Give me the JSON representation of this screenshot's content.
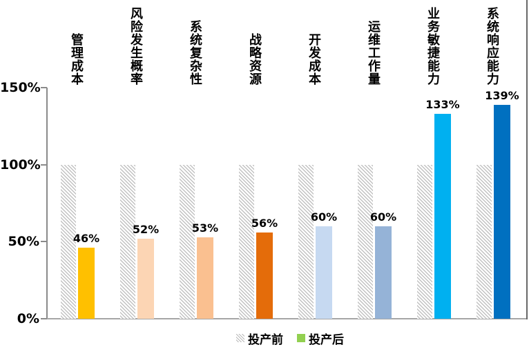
{
  "chart_data": {
    "type": "bar",
    "title": "",
    "categories": [
      "管理成本",
      "风险发生概率",
      "系统复杂性",
      "战略资源",
      "开发成本",
      "运维工作量",
      "业务敏捷能力",
      "系统响应能力"
    ],
    "series": [
      {
        "name": "投产前",
        "values": [
          100,
          100,
          100,
          100,
          100,
          100,
          100,
          100
        ],
        "style": "hatched-gray"
      },
      {
        "name": "投产后",
        "values": [
          46,
          52,
          53,
          56,
          60,
          60,
          133,
          139
        ],
        "bar_colors": [
          "#FFC000",
          "#FCD5B4",
          "#FAC090",
          "#E46C0A",
          "#C6D9F1",
          "#95B3D7",
          "#00B0F0",
          "#0070C0"
        ]
      }
    ],
    "value_labels": [
      "46%",
      "52%",
      "53%",
      "56%",
      "60%",
      "60%",
      "133%",
      "139%"
    ],
    "y_ticks": [
      {
        "value": 0,
        "label": "0%"
      },
      {
        "value": 50,
        "label": "50%"
      },
      {
        "value": 100,
        "label": "100%"
      },
      {
        "value": 150,
        "label": "150%"
      }
    ],
    "ylim": [
      0,
      150
    ],
    "grid": false,
    "legend_position": "bottom-center",
    "legend": [
      {
        "label": "投产前",
        "swatch": "hatched-gray"
      },
      {
        "label": "投产后",
        "swatch": "#92D050"
      }
    ]
  },
  "colors": {
    "hatch_stripe": "#C2C2C2",
    "axis": "#8A8A8A",
    "baseline": "#A6A6A6",
    "right_border": "#666666",
    "label_text": "#000000",
    "legend_green": "#92D050"
  }
}
